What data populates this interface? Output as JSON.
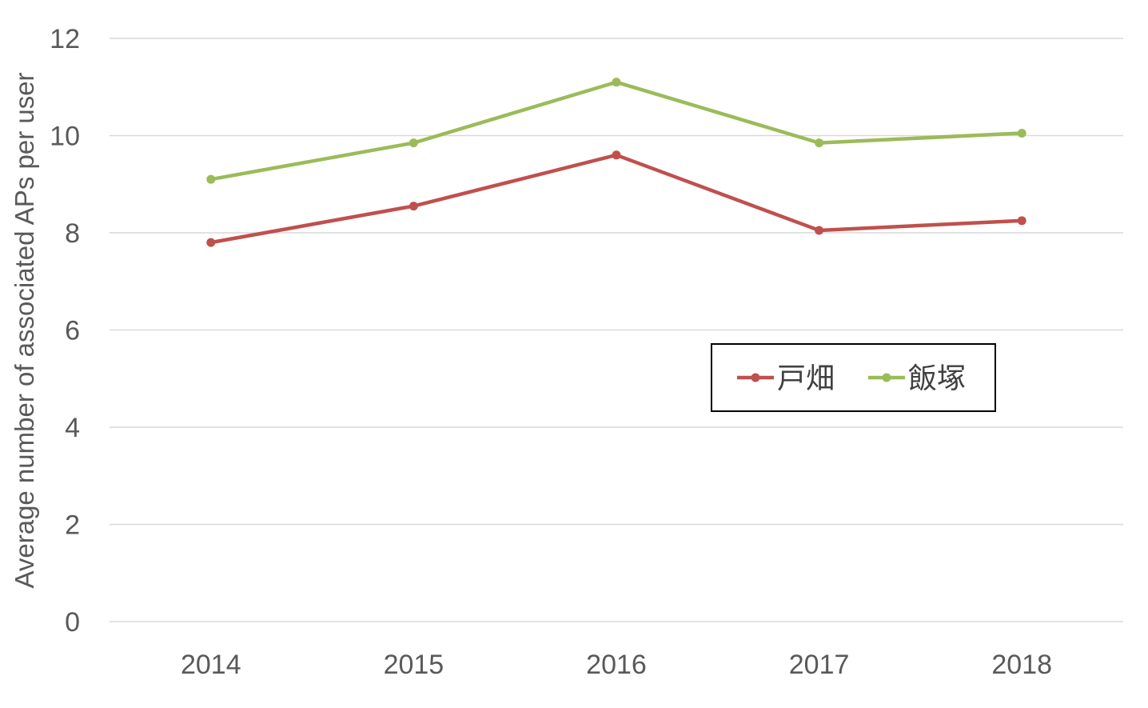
{
  "chart_data": {
    "type": "line",
    "title": "",
    "xlabel": "",
    "ylabel": "Average number of associated APs per user",
    "x": [
      "2014",
      "2015",
      "2016",
      "2017",
      "2018"
    ],
    "ylim": [
      0,
      12
    ],
    "yticks": [
      "0",
      "2",
      "4",
      "6",
      "8",
      "10",
      "12"
    ],
    "grid": "horizontal",
    "legend_position": "right-middle",
    "series": [
      {
        "name": "戸畑",
        "color": "#c0504d",
        "values": [
          7.8,
          8.55,
          9.6,
          8.05,
          8.25
        ]
      },
      {
        "name": "飯塚",
        "color": "#9bbb59",
        "values": [
          9.1,
          9.85,
          11.1,
          9.85,
          10.05
        ]
      }
    ]
  }
}
